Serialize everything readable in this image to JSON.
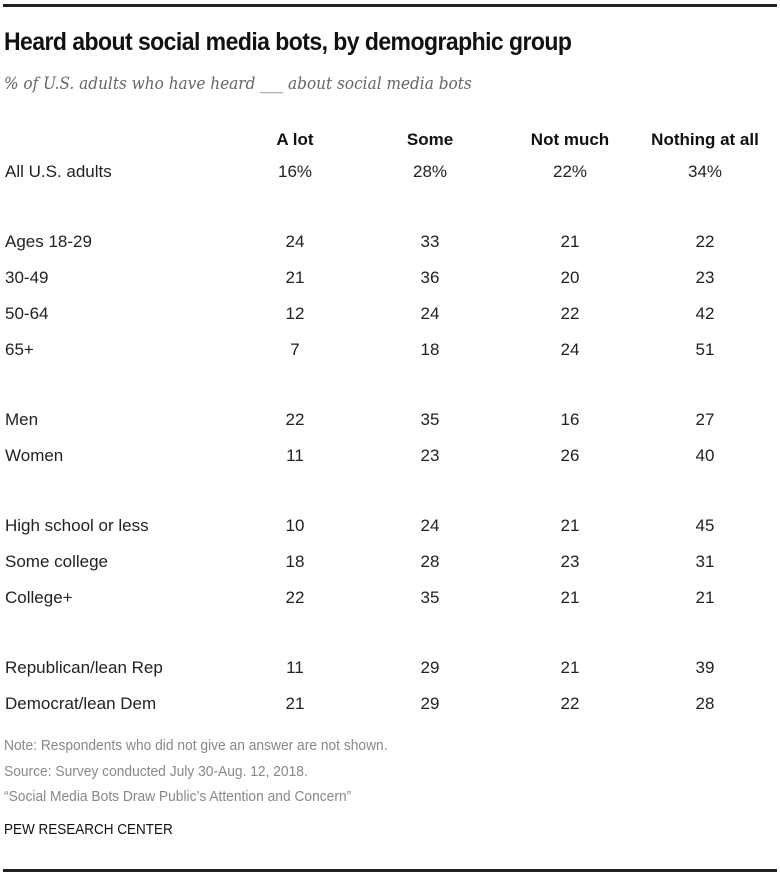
{
  "chart_data": {
    "type": "table",
    "title": "Heard about social media bots, by demographic group",
    "subtitle": "% of U.S. adults who have heard ___ about social media bots",
    "columns": [
      "A lot",
      "Some",
      "Not much",
      "Nothing at all"
    ],
    "groups": [
      [
        {
          "label": "All U.S. adults",
          "values": [
            "16%",
            "28%",
            "22%",
            "34%"
          ]
        }
      ],
      [
        {
          "label": "Ages 18-29",
          "values": [
            "24",
            "33",
            "21",
            "22"
          ]
        },
        {
          "label": "30-49",
          "values": [
            "21",
            "36",
            "20",
            "23"
          ]
        },
        {
          "label": "50-64",
          "values": [
            "12",
            "24",
            "22",
            "42"
          ]
        },
        {
          "label": "65+",
          "values": [
            "7",
            "18",
            "24",
            "51"
          ]
        }
      ],
      [
        {
          "label": "Men",
          "values": [
            "22",
            "35",
            "16",
            "27"
          ]
        },
        {
          "label": "Women",
          "values": [
            "11",
            "23",
            "26",
            "40"
          ]
        }
      ],
      [
        {
          "label": "High school or less",
          "values": [
            "10",
            "24",
            "21",
            "45"
          ]
        },
        {
          "label": "Some college",
          "values": [
            "18",
            "28",
            "23",
            "31"
          ]
        },
        {
          "label": "College+",
          "values": [
            "22",
            "35",
            "21",
            "21"
          ]
        }
      ],
      [
        {
          "label": "Republican/lean Rep",
          "values": [
            "11",
            "29",
            "21",
            "39"
          ]
        },
        {
          "label": "Democrat/lean Dem",
          "values": [
            "21",
            "29",
            "22",
            "28"
          ]
        }
      ]
    ]
  },
  "footer": {
    "note": "Note: Respondents who did not give an answer are not shown.",
    "source": "Source: Survey conducted July 30-Aug. 12, 2018.",
    "report": "“Social Media Bots Draw Public’s Attention and Concern”",
    "credit": "PEW RESEARCH CENTER"
  }
}
